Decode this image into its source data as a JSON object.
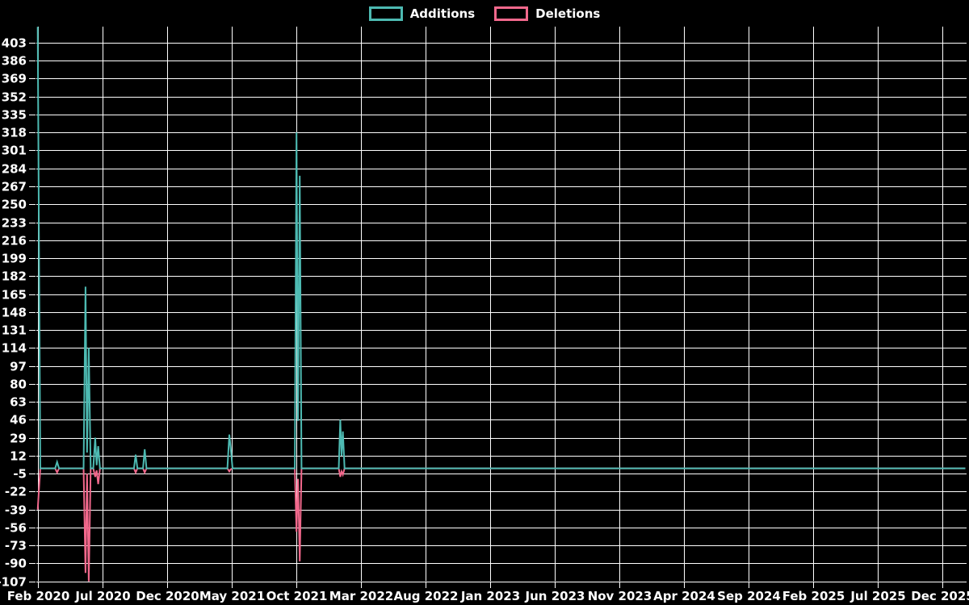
{
  "chart_data": {
    "type": "line",
    "title": "",
    "legend_position": "top-center",
    "grid": true,
    "colors": {
      "background": "#000000",
      "grid": "#ffffff",
      "text": "#ffffff",
      "additions": "#4dbab2",
      "deletions": "#f2688c"
    },
    "legend": [
      {
        "name": "Additions",
        "color": "#4dbab2"
      },
      {
        "name": "Deletions",
        "color": "#f2688c"
      }
    ],
    "x_axis": {
      "tick_labels": [
        "Feb 2020",
        "Jul 2020",
        "Dec 2020",
        "May 2021",
        "Oct 2021",
        "Mar 2022",
        "Aug 2022",
        "Jan 2023",
        "Jun 2023",
        "Nov 2023",
        "Apr 2024",
        "Sep 2024",
        "Feb 2025",
        "Jul 2025",
        "Dec 2025"
      ],
      "months_per_tick": 5
    },
    "y_axis": {
      "tick_values": [
        403,
        386,
        369,
        352,
        335,
        318,
        301,
        284,
        267,
        250,
        233,
        216,
        199,
        182,
        165,
        148,
        131,
        114,
        97,
        80,
        63,
        46,
        29,
        12,
        -5,
        -22,
        -39,
        -56,
        -73,
        -90,
        -107
      ],
      "tick_step": 17
    },
    "x_unit": "months since Feb 2020",
    "x": [
      0.0,
      0.2,
      1.35,
      1.5,
      1.65,
      3.55,
      3.7,
      3.82,
      3.95,
      4.1,
      4.3,
      4.45,
      4.56,
      4.68,
      4.82,
      7.45,
      7.58,
      7.72,
      8.15,
      8.28,
      8.42,
      14.68,
      14.83,
      14.93,
      15.08,
      19.9,
      20.03,
      20.15,
      20.28,
      20.42,
      23.3,
      23.42,
      23.52,
      23.62,
      23.75,
      71.8
    ],
    "series": [
      {
        "name": "Additions",
        "color": "#4dbab2",
        "values": [
          418,
          0,
          0,
          6,
          0,
          0,
          172,
          15,
          114,
          0,
          0,
          29,
          3,
          21,
          0,
          0,
          13,
          0,
          0,
          18,
          0,
          0,
          32,
          20,
          0,
          0,
          318,
          45,
          277,
          0,
          0,
          46,
          12,
          35,
          0,
          0
        ]
      },
      {
        "name": "Deletions",
        "color": "#f2688c",
        "values": [
          -39,
          0,
          0,
          -4,
          0,
          0,
          -99,
          -5,
          -107,
          0,
          0,
          -8,
          -2,
          -15,
          0,
          0,
          -4,
          0,
          0,
          -4,
          0,
          0,
          -3,
          -1,
          0,
          0,
          -60,
          -10,
          -88,
          0,
          0,
          -8,
          -3,
          -6,
          0,
          0
        ]
      }
    ]
  }
}
